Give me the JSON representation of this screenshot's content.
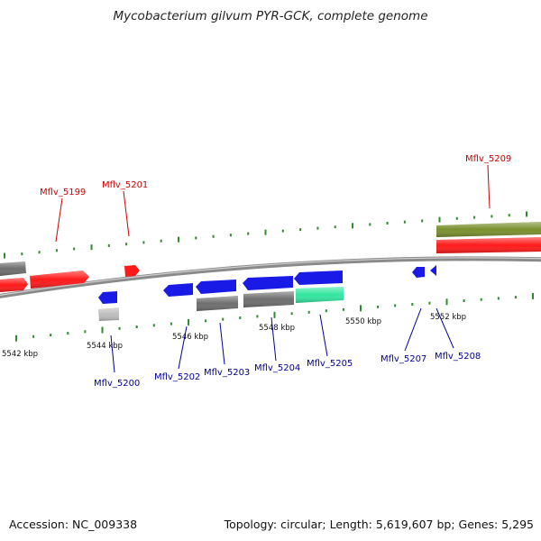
{
  "title": "Mycobacterium gilvum PYR-GCK, complete genome",
  "accession": "Accession: NC_009338",
  "summary": "Topology: circular; Length: 5,619,607 bp; Genes: 5,295",
  "colors": {
    "red": "#ff1a1a",
    "blue": "#1a1ae6",
    "gray": "#6e6e6e",
    "lightgray": "#bdbdbd",
    "green": "#33e6a0",
    "olive": "#7a8f2e",
    "tick": "#2e8b2e",
    "backbone": "#8a8a8a",
    "top_label": "#cc0000",
    "bottom_label": "#000099"
  },
  "scale_labels": [
    {
      "text": "5542 kbp"
    },
    {
      "text": "5544 kbp"
    },
    {
      "text": "5546 kbp"
    },
    {
      "text": "5548 kbp"
    },
    {
      "text": "5550 kbp"
    },
    {
      "text": "5552 kbp"
    }
  ],
  "gene_labels": [
    {
      "text": "Mflv_5199",
      "strand": "top"
    },
    {
      "text": "Mflv_5201",
      "strand": "top"
    },
    {
      "text": "Mflv_5209",
      "strand": "top"
    },
    {
      "text": "Mflv_5200",
      "strand": "bottom"
    },
    {
      "text": "Mflv_5202",
      "strand": "bottom"
    },
    {
      "text": "Mflv_5203",
      "strand": "bottom"
    },
    {
      "text": "Mflv_5204",
      "strand": "bottom"
    },
    {
      "text": "Mflv_5205",
      "strand": "bottom"
    },
    {
      "text": "Mflv_5207",
      "strand": "bottom"
    },
    {
      "text": "Mflv_5208",
      "strand": "bottom"
    }
  ]
}
